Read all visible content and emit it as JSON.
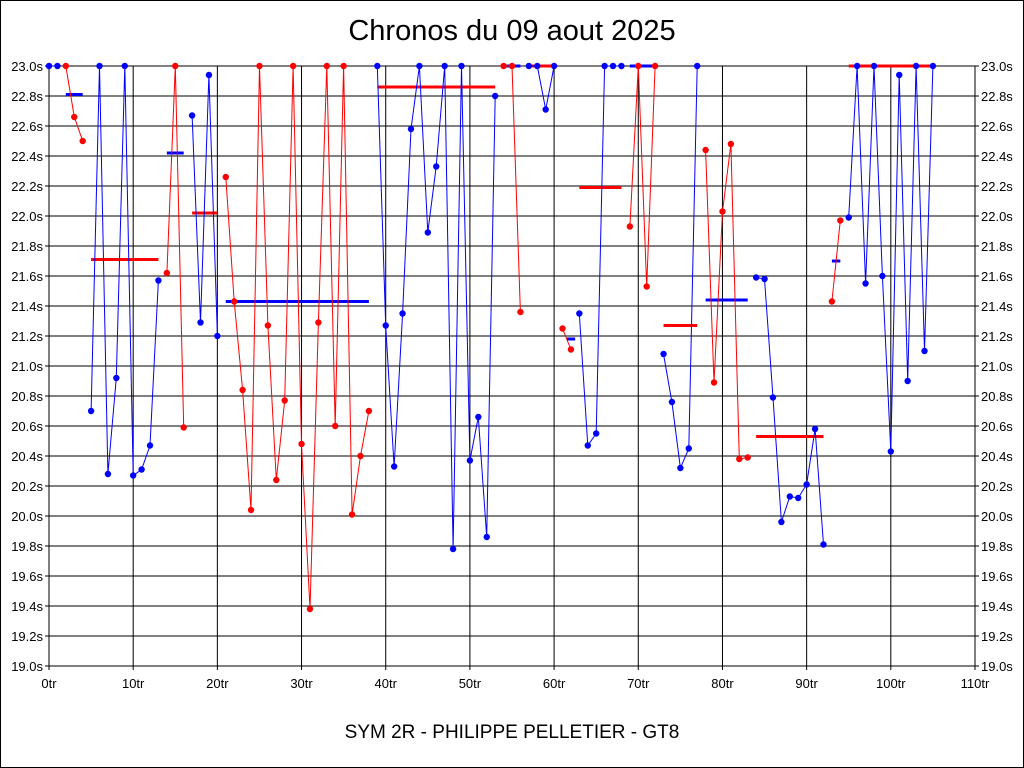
{
  "page": {
    "title": "Chronos du 09 aout 2025",
    "footer": "SYM 2R - PHILIPPE PELLETIER - GT8"
  },
  "colors": {
    "red": "#ff0000",
    "blue": "#0000ff",
    "grid": "#000000",
    "background": "#ffffff"
  },
  "chart_data": {
    "type": "line",
    "title": "Chronos du 09 aout 2025",
    "xlim": [
      0,
      110
    ],
    "ylim": [
      19.0,
      23.0
    ],
    "x_ticks": [
      "0tr",
      "10tr",
      "20tr",
      "30tr",
      "40tr",
      "50tr",
      "60tr",
      "70tr",
      "80tr",
      "90tr",
      "100tr",
      "110tr"
    ],
    "y_ticks": [
      "19.0s",
      "19.2s",
      "19.4s",
      "19.6s",
      "19.8s",
      "20.0s",
      "20.2s",
      "20.4s",
      "20.6s",
      "20.8s",
      "21.0s",
      "21.2s",
      "21.4s",
      "21.6s",
      "21.8s",
      "22.0s",
      "22.2s",
      "22.4s",
      "22.6s",
      "22.8s",
      "23.0s"
    ],
    "grid": true,
    "segments": [
      {
        "color": "blue",
        "points": [
          [
            0,
            23.0
          ],
          [
            1,
            23.0
          ]
        ]
      },
      {
        "color": "red",
        "points": [
          [
            2,
            23.0
          ],
          [
            3,
            22.66
          ],
          [
            4,
            22.5
          ]
        ]
      },
      {
        "color": "blue",
        "points": [
          [
            5,
            20.7
          ],
          [
            6,
            23.0
          ],
          [
            7,
            20.28
          ],
          [
            8,
            20.92
          ],
          [
            9,
            23.0
          ],
          [
            10,
            20.27
          ],
          [
            11,
            20.31
          ],
          [
            12,
            20.47
          ],
          [
            13,
            21.57
          ]
        ]
      },
      {
        "color": "red",
        "points": [
          [
            14,
            21.62
          ],
          [
            15,
            23.0
          ],
          [
            16,
            20.59
          ]
        ]
      },
      {
        "color": "blue",
        "points": [
          [
            17,
            22.67
          ],
          [
            18,
            21.29
          ],
          [
            19,
            22.94
          ],
          [
            20,
            21.2
          ]
        ]
      },
      {
        "color": "red",
        "points": [
          [
            21,
            22.26
          ],
          [
            22,
            21.43
          ],
          [
            23,
            20.84
          ],
          [
            24,
            20.04
          ],
          [
            25,
            23.0
          ],
          [
            26,
            21.27
          ],
          [
            27,
            20.24
          ],
          [
            28,
            20.77
          ],
          [
            29,
            23.0
          ],
          [
            30,
            20.48
          ],
          [
            31,
            19.38
          ],
          [
            32,
            21.29
          ],
          [
            33,
            23.0
          ],
          [
            34,
            20.6
          ],
          [
            35,
            23.0
          ],
          [
            36,
            20.01
          ],
          [
            37,
            20.4
          ],
          [
            38,
            20.7
          ]
        ]
      },
      {
        "color": "blue",
        "points": [
          [
            39,
            23.0
          ],
          [
            40,
            21.27
          ],
          [
            41,
            20.33
          ],
          [
            42,
            21.35
          ],
          [
            43,
            22.58
          ],
          [
            44,
            23.0
          ],
          [
            45,
            21.89
          ],
          [
            46,
            22.33
          ],
          [
            47,
            23.0
          ],
          [
            48,
            19.78
          ],
          [
            49,
            23.0
          ],
          [
            50,
            20.37
          ],
          [
            51,
            20.66
          ],
          [
            52,
            19.86
          ],
          [
            53,
            22.8
          ]
        ]
      },
      {
        "color": "red",
        "points": [
          [
            54,
            23.0
          ],
          [
            55,
            23.0
          ],
          [
            56,
            21.36
          ]
        ]
      },
      {
        "color": "blue",
        "points": [
          [
            57,
            23.0
          ],
          [
            58,
            23.0
          ],
          [
            59,
            22.71
          ],
          [
            60,
            23.0
          ]
        ]
      },
      {
        "color": "red",
        "points": [
          [
            61,
            21.25
          ],
          [
            62,
            21.11
          ]
        ]
      },
      {
        "color": "blue",
        "points": [
          [
            63,
            21.35
          ],
          [
            64,
            20.47
          ],
          [
            65,
            20.55
          ],
          [
            66,
            23.0
          ],
          [
            67,
            23.0
          ],
          [
            68,
            23.0
          ]
        ]
      },
      {
        "color": "red",
        "points": [
          [
            69,
            21.93
          ],
          [
            70,
            23.0
          ],
          [
            71,
            21.53
          ],
          [
            72,
            23.0
          ]
        ]
      },
      {
        "color": "blue",
        "points": [
          [
            73,
            21.08
          ],
          [
            74,
            20.76
          ],
          [
            75,
            20.32
          ],
          [
            76,
            20.45
          ],
          [
            77,
            23.0
          ]
        ]
      },
      {
        "color": "red",
        "points": [
          [
            78,
            22.44
          ],
          [
            79,
            20.89
          ],
          [
            80,
            22.03
          ],
          [
            81,
            22.48
          ],
          [
            82,
            20.38
          ],
          [
            83,
            20.39
          ]
        ]
      },
      {
        "color": "blue",
        "points": [
          [
            84,
            21.59
          ],
          [
            85,
            21.58
          ],
          [
            86,
            20.79
          ],
          [
            87,
            19.96
          ],
          [
            88,
            20.13
          ],
          [
            89,
            20.12
          ],
          [
            90,
            20.21
          ],
          [
            91,
            20.58
          ],
          [
            92,
            19.81
          ]
        ]
      },
      {
        "color": "red",
        "points": [
          [
            93,
            21.43
          ],
          [
            94,
            21.97
          ]
        ]
      },
      {
        "color": "blue",
        "points": [
          [
            95,
            21.99
          ],
          [
            96,
            23.0
          ],
          [
            97,
            21.55
          ],
          [
            98,
            23.0
          ],
          [
            99,
            21.6
          ],
          [
            100,
            20.43
          ],
          [
            101,
            22.94
          ],
          [
            102,
            20.9
          ],
          [
            103,
            23.0
          ],
          [
            104,
            21.1
          ],
          [
            105,
            23.0
          ]
        ]
      }
    ],
    "averages": [
      {
        "color": "blue",
        "x": [
          2,
          4
        ],
        "y": 22.81
      },
      {
        "color": "red",
        "x": [
          5,
          13
        ],
        "y": 21.71
      },
      {
        "color": "blue",
        "x": [
          14,
          16
        ],
        "y": 22.42
      },
      {
        "color": "red",
        "x": [
          17,
          20
        ],
        "y": 22.02
      },
      {
        "color": "blue",
        "x": [
          21,
          38
        ],
        "y": 21.43
      },
      {
        "color": "red",
        "x": [
          39,
          53
        ],
        "y": 22.86
      },
      {
        "color": "blue",
        "x": [
          54,
          56
        ],
        "y": 23.0
      },
      {
        "color": "red",
        "x": [
          57,
          60
        ],
        "y": 23.0
      },
      {
        "color": "blue",
        "x": [
          61.5,
          62.5
        ],
        "y": 21.18
      },
      {
        "color": "red",
        "x": [
          63,
          68
        ],
        "y": 22.19
      },
      {
        "color": "blue",
        "x": [
          69,
          72
        ],
        "y": 23.0
      },
      {
        "color": "red",
        "x": [
          73,
          77
        ],
        "y": 21.27
      },
      {
        "color": "blue",
        "x": [
          78,
          83
        ],
        "y": 21.44
      },
      {
        "color": "red",
        "x": [
          84,
          92
        ],
        "y": 20.53
      },
      {
        "color": "blue",
        "x": [
          93,
          94
        ],
        "y": 21.7
      },
      {
        "color": "red",
        "x": [
          95,
          105
        ],
        "y": 23.0
      }
    ]
  }
}
